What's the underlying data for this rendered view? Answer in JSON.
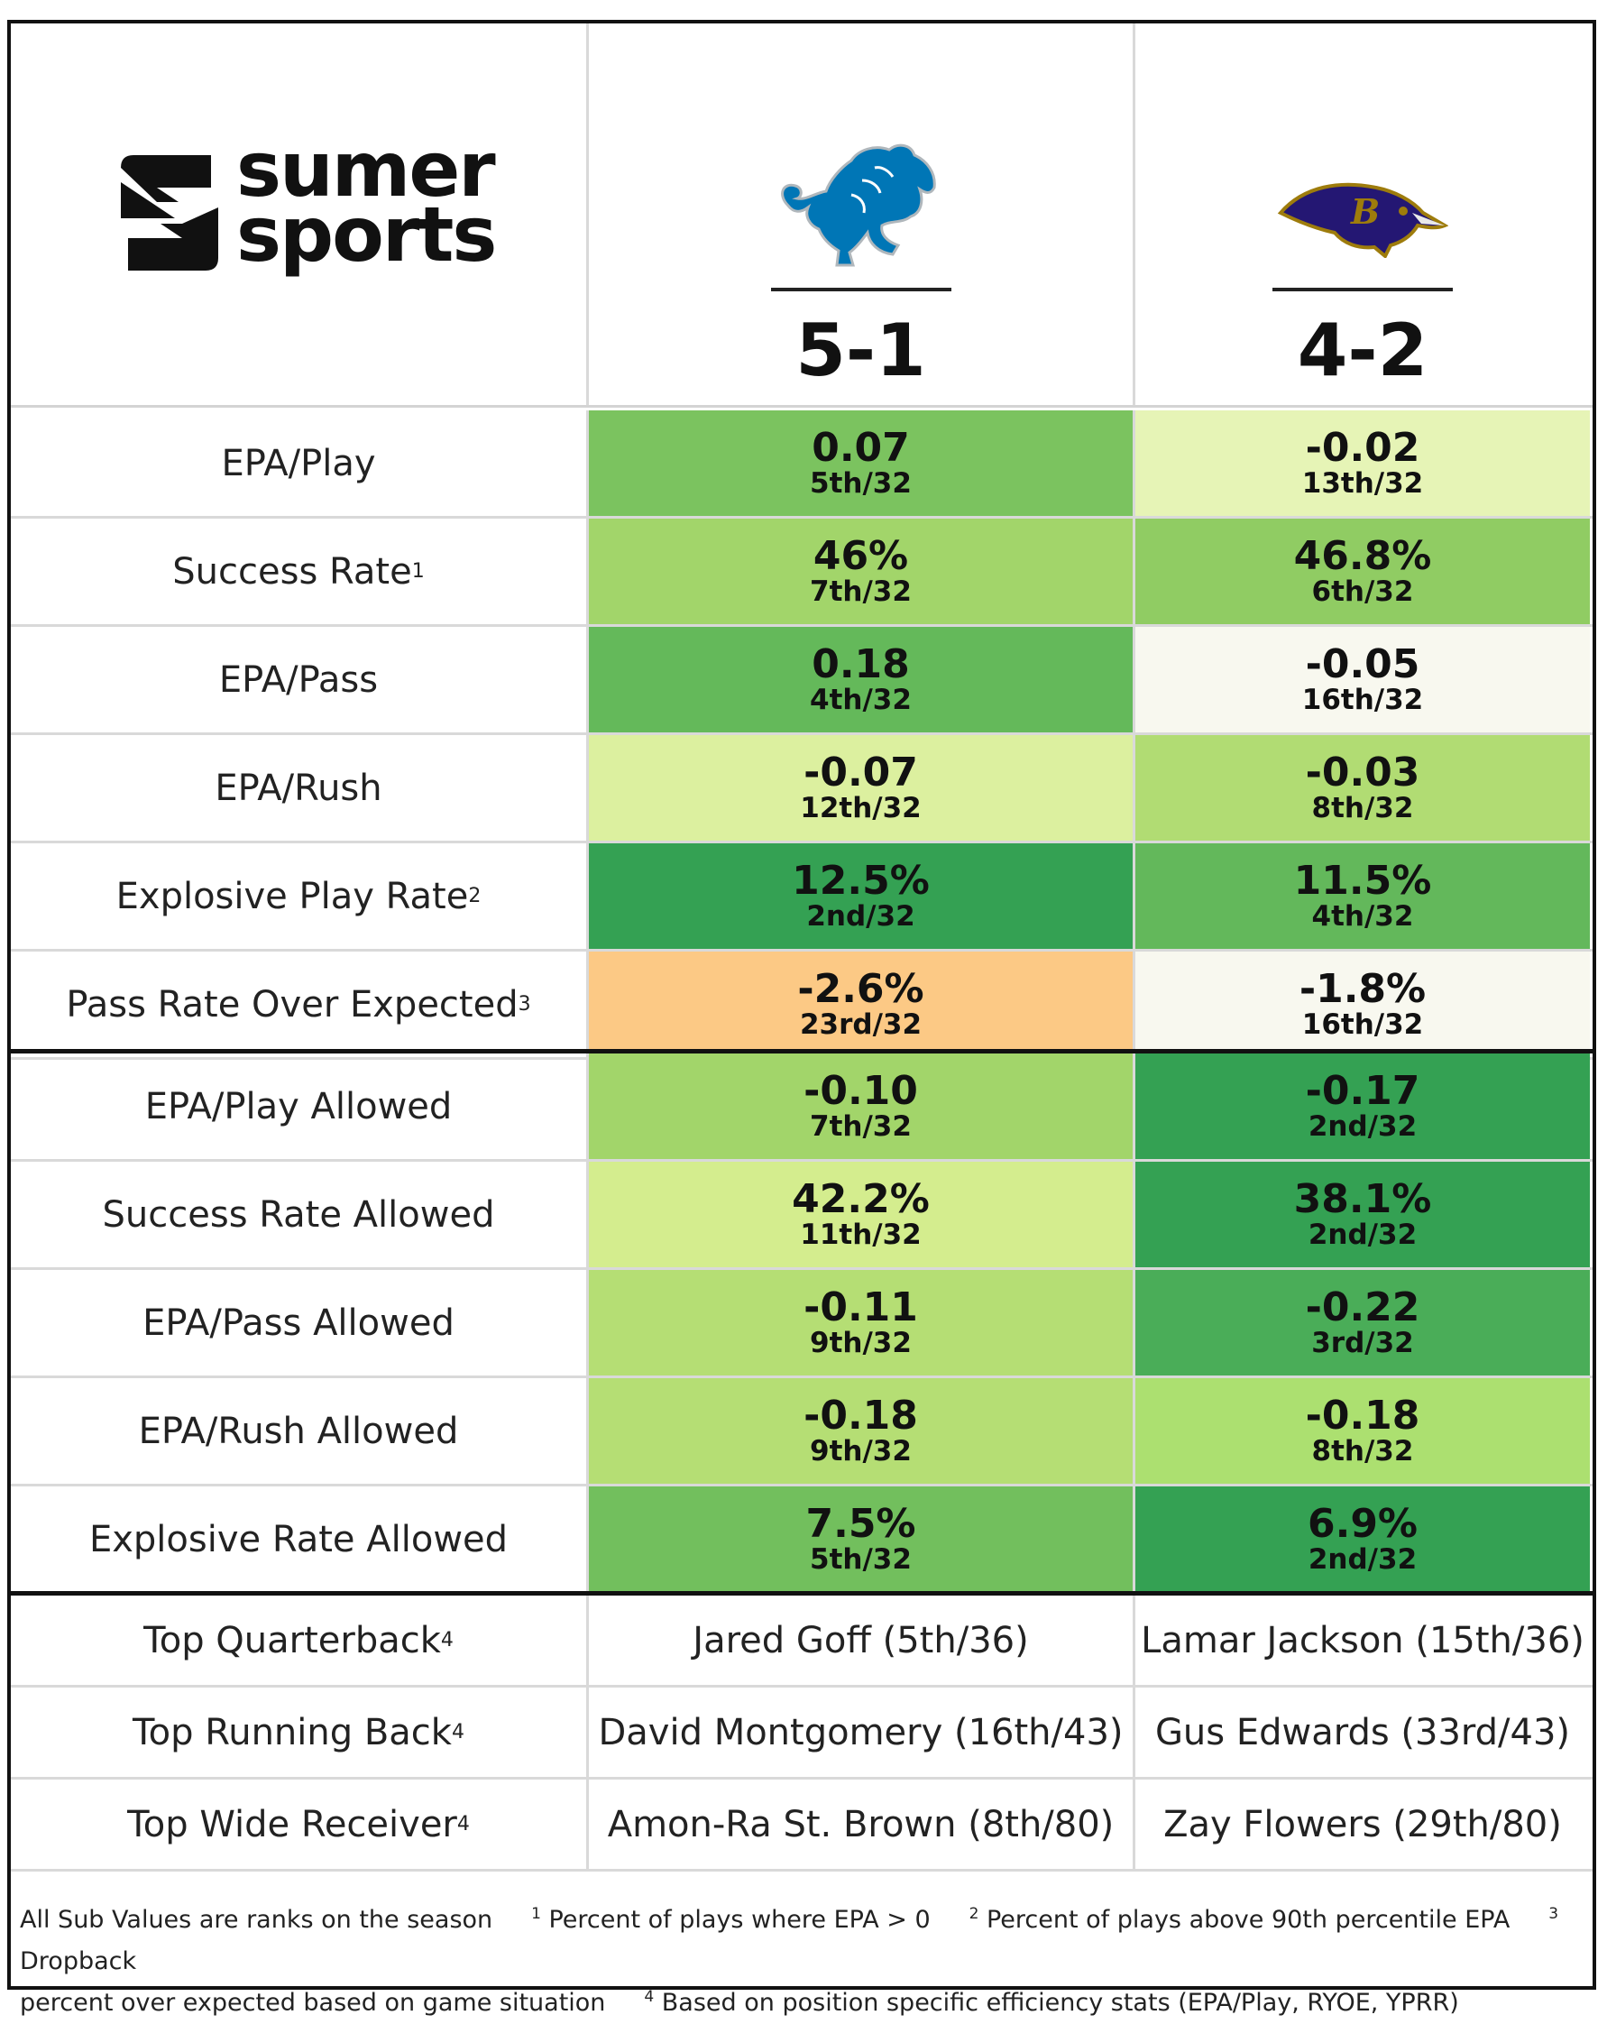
{
  "brand": {
    "line1": "sumer",
    "line2": "sports",
    "mark_icon": "sumer-sports-logo-icon"
  },
  "teams": [
    {
      "logo_icon": "detroit-lions-logo-icon",
      "record": "5-1",
      "accent": "#0076B6"
    },
    {
      "logo_icon": "baltimore-ravens-logo-icon",
      "record": "4-2",
      "accent": "#241773"
    }
  ],
  "offense_rows": [
    {
      "label": "EPA/Play",
      "sup": "",
      "a": {
        "value": "0.07",
        "rank": "5th/32",
        "color": "#7bc35f"
      },
      "b": {
        "value": "-0.02",
        "rank": "13th/32",
        "color": "#e6f4b6"
      }
    },
    {
      "label": "Success Rate",
      "sup": "1",
      "a": {
        "value": "46%",
        "rank": "7th/32",
        "color": "#a2d56a"
      },
      "b": {
        "value": "46.8%",
        "rank": "6th/32",
        "color": "#90cc63"
      }
    },
    {
      "label": "EPA/Pass",
      "sup": "",
      "a": {
        "value": "0.18",
        "rank": "4th/32",
        "color": "#64b95a"
      },
      "b": {
        "value": "-0.05",
        "rank": "16th/32",
        "color": "#f8f8ef"
      }
    },
    {
      "label": "EPA/Rush",
      "sup": "",
      "a": {
        "value": "-0.07",
        "rank": "12th/32",
        "color": "#dcf09f"
      },
      "b": {
        "value": "-0.03",
        "rank": "8th/32",
        "color": "#b1dc73"
      }
    },
    {
      "label": "Explosive Play Rate",
      "sup": "2",
      "a": {
        "value": "12.5%",
        "rank": "2nd/32",
        "color": "#34a153"
      },
      "b": {
        "value": "11.5%",
        "rank": "4th/32",
        "color": "#63b85b"
      }
    },
    {
      "label": "Pass Rate Over Expected",
      "sup": "3",
      "a": {
        "value": "-2.6%",
        "rank": "23rd/32",
        "color": "#fcc985"
      },
      "b": {
        "value": "-1.8%",
        "rank": "16th/32",
        "color": "#f8f8ef"
      }
    }
  ],
  "defense_rows": [
    {
      "label": "EPA/Play Allowed",
      "sup": "",
      "a": {
        "value": "-0.10",
        "rank": "7th/32",
        "color": "#a2d56a"
      },
      "b": {
        "value": "-0.17",
        "rank": "2nd/32",
        "color": "#34a153"
      }
    },
    {
      "label": "Success Rate Allowed",
      "sup": "",
      "a": {
        "value": "42.2%",
        "rank": "11th/32",
        "color": "#d4ed8e"
      },
      "b": {
        "value": "38.1%",
        "rank": "2nd/32",
        "color": "#34a153"
      }
    },
    {
      "label": "EPA/Pass Allowed",
      "sup": "",
      "a": {
        "value": "-0.11",
        "rank": "9th/32",
        "color": "#b5de74"
      },
      "b": {
        "value": "-0.22",
        "rank": "3rd/32",
        "color": "#4aad58"
      }
    },
    {
      "label": "EPA/Rush Allowed",
      "sup": "",
      "a": {
        "value": "-0.18",
        "rank": "9th/32",
        "color": "#b5de74"
      },
      "b": {
        "value": "-0.18",
        "rank": "8th/32",
        "color": "#ace070"
      }
    },
    {
      "label": "Explosive Rate Allowed",
      "sup": "",
      "a": {
        "value": "7.5%",
        "rank": "5th/32",
        "color": "#72bf5d"
      },
      "b": {
        "value": "6.9%",
        "rank": "2nd/32",
        "color": "#34a153"
      }
    }
  ],
  "player_rows": [
    {
      "label": "Top Quarterback",
      "sup": "4",
      "a": "Jared Goff (5th/36)",
      "b": "Lamar Jackson (15th/36)"
    },
    {
      "label": "Top Running Back",
      "sup": "4",
      "a": "David Montgomery (16th/43)",
      "b": "Gus Edwards (33rd/43)"
    },
    {
      "label": "Top Wide Receiver",
      "sup": "4",
      "a": "Amon-Ra St. Brown (8th/80)",
      "b": "Zay Flowers (29th/80)"
    }
  ],
  "footnotes": {
    "intro": "All Sub Values are ranks on the season",
    "n1_mark": "1",
    "n1": "Percent of plays where EPA > 0",
    "n2_mark": "2",
    "n2": "Percent of plays above 90th percentile EPA",
    "n3_mark": "3",
    "n3a": "Dropback",
    "n3b": "percent over expected based on game situation",
    "n4_mark": "4",
    "n4": "Based on position specific efficiency stats (EPA/Play, RYOE, YPRR)"
  }
}
